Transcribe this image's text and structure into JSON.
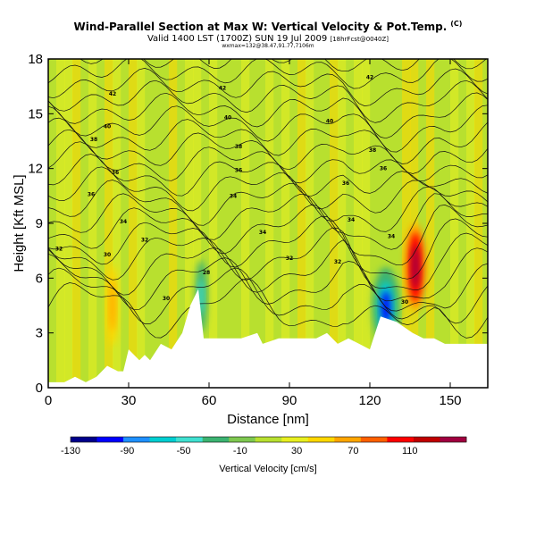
{
  "chart_data": {
    "type": "heatmap",
    "title": "Wind-Parallel Section at Max W: Vertical Velocity & Pot.Temp.",
    "title_tag": "(C)",
    "subtitle_main": "Valid 1400 LST (1700Z) SUN 19 Jul 2009",
    "subtitle_small": "[18hrFcst@0040Z]",
    "subsubtitle": "wxmax=132@38.47,91.77,7106m",
    "xlabel": "Distance [nm]",
    "ylabel": "Height [Kft MSL]",
    "xlim": [
      0,
      164
    ],
    "ylim": [
      0,
      18
    ],
    "xticks": [
      0,
      30,
      60,
      90,
      120,
      150
    ],
    "yticks": [
      0,
      3,
      6,
      9,
      12,
      15,
      18
    ],
    "colorbar": {
      "title": "Vertical Velocity [cm/s]",
      "range": [
        -130,
        150
      ],
      "tick_labels": [
        "-130",
        "-90",
        "-50",
        "-10",
        "30",
        "70",
        "110"
      ],
      "tick_values": [
        -130,
        -90,
        -50,
        -10,
        30,
        70,
        110
      ],
      "colors": [
        "#00008b",
        "#0000ff",
        "#1e90ff",
        "#00ced1",
        "#40e0d0",
        "#3cb371",
        "#7ec850",
        "#b8e030",
        "#e8ef20",
        "#ffd700",
        "#ffa500",
        "#ff6000",
        "#ff0000",
        "#c00000",
        "#a00040"
      ]
    },
    "terrain": {
      "x": [
        0,
        6,
        10,
        14,
        18,
        22,
        26,
        28,
        30,
        34,
        36,
        38,
        42,
        46,
        50,
        53,
        56,
        58,
        60,
        66,
        72,
        78,
        80,
        86,
        92,
        100,
        104,
        108,
        112,
        116,
        120,
        124,
        130,
        136,
        140,
        144,
        148,
        152,
        156,
        160,
        164
      ],
      "y": [
        0.3,
        0.3,
        0.6,
        0.3,
        0.6,
        1.2,
        0.9,
        0.9,
        2.1,
        1.5,
        1.8,
        1.5,
        2.4,
        2.1,
        3.0,
        4.5,
        5.4,
        2.7,
        2.7,
        2.7,
        2.7,
        3.0,
        2.4,
        2.7,
        2.7,
        2.7,
        3.0,
        2.4,
        2.7,
        2.4,
        2.1,
        3.9,
        3.6,
        3.0,
        2.7,
        2.7,
        2.4,
        2.4,
        2.4,
        2.4,
        2.4
      ]
    },
    "vertical_velocity_features": [
      {
        "name": "updraft-core",
        "x": 137,
        "y": 6.6,
        "value": 132
      },
      {
        "name": "downdraft-core",
        "x": 126,
        "y": 4.4,
        "value": -110
      },
      {
        "name": "updraft-band-left",
        "x": 24,
        "y": 4.5,
        "value": 60
      },
      {
        "name": "downdraft-lee",
        "x": 57,
        "y": 5.0,
        "value": -40
      }
    ],
    "theta_contours": {
      "levels": [
        300,
        302,
        304,
        306,
        308,
        310,
        312,
        314,
        316,
        318,
        320,
        322,
        324,
        326,
        328,
        330,
        332,
        334,
        336,
        338,
        340
      ],
      "labels": [
        {
          "text": "30",
          "x": 22,
          "y": 7.3
        },
        {
          "text": "30",
          "x": 44,
          "y": 4.9
        },
        {
          "text": "28",
          "x": 59,
          "y": 6.3
        },
        {
          "text": "32",
          "x": 90,
          "y": 7.1
        },
        {
          "text": "32",
          "x": 108,
          "y": 6.9
        },
        {
          "text": "30",
          "x": 133,
          "y": 4.7
        },
        {
          "text": "32",
          "x": 4,
          "y": 7.6
        },
        {
          "text": "32",
          "x": 36,
          "y": 8.1
        },
        {
          "text": "34",
          "x": 80,
          "y": 8.5
        },
        {
          "text": "34",
          "x": 113,
          "y": 9.2
        },
        {
          "text": "34",
          "x": 128,
          "y": 8.3
        },
        {
          "text": "34",
          "x": 28,
          "y": 9.1
        },
        {
          "text": "34",
          "x": 69,
          "y": 10.5
        },
        {
          "text": "36",
          "x": 16,
          "y": 10.6
        },
        {
          "text": "36",
          "x": 25,
          "y": 11.8
        },
        {
          "text": "36",
          "x": 71,
          "y": 11.9
        },
        {
          "text": "36",
          "x": 111,
          "y": 11.2
        },
        {
          "text": "36",
          "x": 125,
          "y": 12.0
        },
        {
          "text": "38",
          "x": 17,
          "y": 13.6
        },
        {
          "text": "38",
          "x": 71,
          "y": 13.2
        },
        {
          "text": "38",
          "x": 121,
          "y": 13.0
        },
        {
          "text": "40",
          "x": 22,
          "y": 14.3
        },
        {
          "text": "40",
          "x": 67,
          "y": 14.8
        },
        {
          "text": "40",
          "x": 105,
          "y": 14.6
        },
        {
          "text": "42",
          "x": 24,
          "y": 16.1
        },
        {
          "text": "42",
          "x": 65,
          "y": 16.4
        },
        {
          "text": "42",
          "x": 120,
          "y": 17.0
        }
      ]
    }
  }
}
